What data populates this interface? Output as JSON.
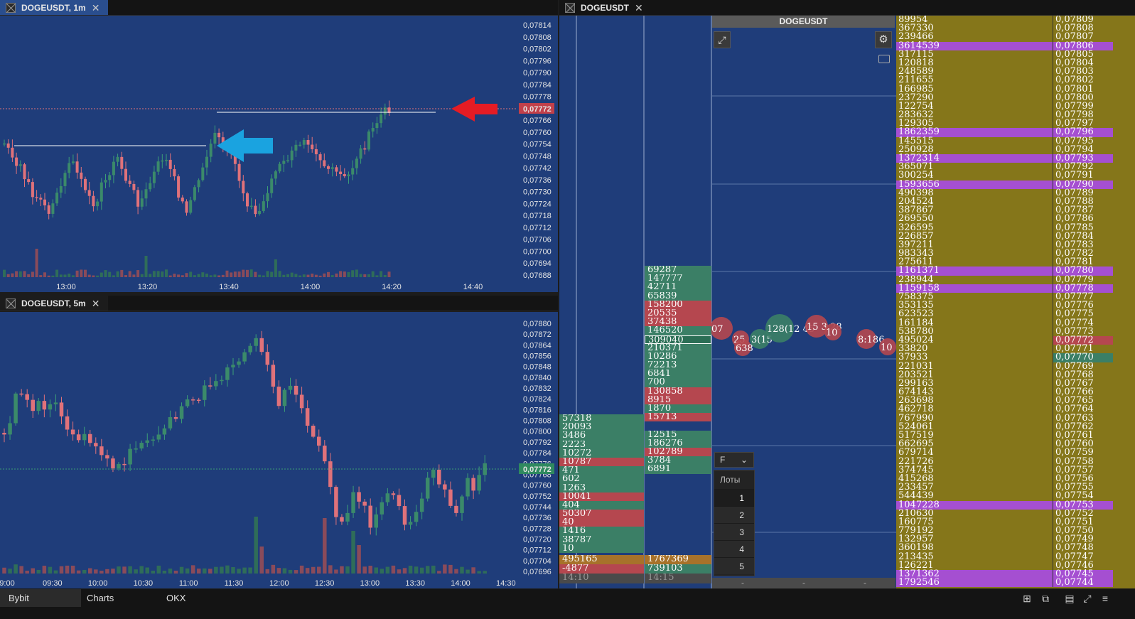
{
  "top_left_tab": {
    "title": "DOGEUSDT, 1m",
    "close": "✕"
  },
  "bottom_left_tab": {
    "title": "DOGEUSDT, 5m",
    "close": "✕"
  },
  "right_tab": {
    "title": "DOGEUSDT",
    "close": "✕"
  },
  "cluster_header": {
    "title": "DOGEUSDT"
  },
  "chart1": {
    "price_labels": [
      "0,07814",
      "0,07808",
      "0,07802",
      "0,07796",
      "0,07790",
      "0,07784",
      "0,07778",
      "0,07772",
      "0,07766",
      "0,07760",
      "0,07754",
      "0,07748",
      "0,07742",
      "0,07736",
      "0,07730",
      "0,07724",
      "0,07718",
      "0,07712",
      "0,07706",
      "0,07700",
      "0,07694",
      "0,07688"
    ],
    "current_price": "0,07772",
    "time_labels": [
      "13:00",
      "13:20",
      "13:40",
      "14:00",
      "14:20",
      "14:40"
    ],
    "colors": {
      "up": "#3b7f66",
      "down": "#e0727a",
      "bg": "#1f3d7a",
      "red_arrow": "#e51c24",
      "blue_arrow": "#1aa3e0"
    }
  },
  "chart2": {
    "price_labels": [
      "0,07880",
      "0,07872",
      "0,07864",
      "0,07856",
      "0,07848",
      "0,07840",
      "0,07832",
      "0,07824",
      "0,07816",
      "0,07808",
      "0,07800",
      "0,07792",
      "0,07784",
      "0,07776",
      "0,07768",
      "0,07760",
      "0,07752",
      "0,07744",
      "0,07736",
      "0,07728",
      "0,07720",
      "0,07712",
      "0,07704",
      "0,07696"
    ],
    "current_price": "0,07772",
    "time_labels": [
      "9:00",
      "09:30",
      "10:00",
      "10:30",
      "11:00",
      "11:30",
      "12:00",
      "12:30",
      "13:00",
      "13:30",
      "14:00",
      "14:30"
    ]
  },
  "cluster_col1": {
    "rows": [
      {
        "v": "57318",
        "c": "g"
      },
      {
        "v": "20093",
        "c": "g"
      },
      {
        "v": "3486",
        "c": "g"
      },
      {
        "v": "2223",
        "c": "g"
      },
      {
        "v": "10272",
        "c": "g"
      },
      {
        "v": "10787",
        "c": "r"
      },
      {
        "v": "471",
        "c": "g"
      },
      {
        "v": "602",
        "c": "g"
      },
      {
        "v": "1263",
        "c": "g"
      },
      {
        "v": "10041",
        "c": "r"
      },
      {
        "v": "404",
        "c": "g"
      },
      {
        "v": "50307",
        "c": "r"
      },
      {
        "v": "40",
        "c": "r"
      },
      {
        "v": "1416",
        "c": "g"
      },
      {
        "v": "38787",
        "c": "g"
      },
      {
        "v": "10",
        "c": "g"
      }
    ],
    "total": "495165",
    "delta": "-4877",
    "time": "14:10"
  },
  "cluster_col2": {
    "rows": [
      {
        "v": "69287",
        "c": "g"
      },
      {
        "v": "147777",
        "c": "g"
      },
      {
        "v": "42711",
        "c": "g"
      },
      {
        "v": "65839",
        "c": "g"
      },
      {
        "v": "158200",
        "c": "r"
      },
      {
        "v": "20535",
        "c": "r"
      },
      {
        "v": "37438",
        "c": "r"
      },
      {
        "v": "146520",
        "c": "g"
      },
      {
        "v": "309040",
        "c": "sel"
      },
      {
        "v": "210371",
        "c": "g"
      },
      {
        "v": "10286",
        "c": "g"
      },
      {
        "v": "72213",
        "c": "g"
      },
      {
        "v": "6841",
        "c": "g"
      },
      {
        "v": "700",
        "c": "g"
      },
      {
        "v": "130858",
        "c": "r"
      },
      {
        "v": "8915",
        "c": "r"
      },
      {
        "v": "1870",
        "c": "g"
      },
      {
        "v": "15713",
        "c": "r"
      },
      {
        "v": "",
        "c": ""
      },
      {
        "v": "12515",
        "c": "g"
      },
      {
        "v": "186276",
        "c": "g"
      },
      {
        "v": "102789",
        "c": "r"
      },
      {
        "v": "3784",
        "c": "g"
      },
      {
        "v": "6891",
        "c": "g"
      }
    ],
    "total": "1767369",
    "delta": "739103",
    "time": "14:15"
  },
  "bubbles": [
    "07",
    "25",
    "638",
    "3(15",
    "128(12 45",
    "15 3 28",
    "10",
    "8:186",
    "10"
  ],
  "dom": {
    "rows": [
      {
        "v": "89954",
        "p": "0,07809",
        "t": ""
      },
      {
        "v": "367330",
        "p": "0,07808",
        "t": ""
      },
      {
        "v": "239466",
        "p": "0,07807",
        "t": ""
      },
      {
        "v": "3614539",
        "p": "0,07806",
        "t": "hl"
      },
      {
        "v": "317115",
        "p": "0,07805",
        "t": ""
      },
      {
        "v": "120818",
        "p": "0,07804",
        "t": ""
      },
      {
        "v": "248589",
        "p": "0,07803",
        "t": ""
      },
      {
        "v": "211655",
        "p": "0,07802",
        "t": ""
      },
      {
        "v": "166985",
        "p": "0,07801",
        "t": ""
      },
      {
        "v": "237290",
        "p": "0,07800",
        "t": ""
      },
      {
        "v": "122754",
        "p": "0,07799",
        "t": ""
      },
      {
        "v": "283632",
        "p": "0,07798",
        "t": ""
      },
      {
        "v": "129305",
        "p": "0,07797",
        "t": ""
      },
      {
        "v": "1862359",
        "p": "0,07796",
        "t": "hl"
      },
      {
        "v": "145515",
        "p": "0,07795",
        "t": ""
      },
      {
        "v": "250928",
        "p": "0,07794",
        "t": ""
      },
      {
        "v": "1372314",
        "p": "0,07793",
        "t": "hl"
      },
      {
        "v": "365071",
        "p": "0,07792",
        "t": ""
      },
      {
        "v": "300254",
        "p": "0,07791",
        "t": ""
      },
      {
        "v": "1593656",
        "p": "0,07790",
        "t": "hl"
      },
      {
        "v": "490398",
        "p": "0,07789",
        "t": ""
      },
      {
        "v": "204524",
        "p": "0,07788",
        "t": ""
      },
      {
        "v": "387867",
        "p": "0,07787",
        "t": ""
      },
      {
        "v": "269550",
        "p": "0,07786",
        "t": ""
      },
      {
        "v": "326595",
        "p": "0,07785",
        "t": ""
      },
      {
        "v": "226857",
        "p": "0,07784",
        "t": ""
      },
      {
        "v": "397211",
        "p": "0,07783",
        "t": ""
      },
      {
        "v": "983343",
        "p": "0,07782",
        "t": ""
      },
      {
        "v": "275611",
        "p": "0,07781",
        "t": ""
      },
      {
        "v": "1161371",
        "p": "0,07780",
        "t": "hl"
      },
      {
        "v": "238944",
        "p": "0,07779",
        "t": ""
      },
      {
        "v": "1159158",
        "p": "0,07778",
        "t": "hl"
      },
      {
        "v": "758375",
        "p": "0,07777",
        "t": ""
      },
      {
        "v": "353135",
        "p": "0,07776",
        "t": ""
      },
      {
        "v": "623523",
        "p": "0,07775",
        "t": ""
      },
      {
        "v": "161184",
        "p": "0,07774",
        "t": ""
      },
      {
        "v": "538780",
        "p": "0,07773",
        "t": ""
      },
      {
        "v": "495024",
        "p": "0,07772",
        "t": "ask"
      },
      {
        "v": "33820",
        "p": "0,07771",
        "t": ""
      },
      {
        "v": "37933",
        "p": "0,07770",
        "t": "bid"
      },
      {
        "v": "221031",
        "p": "0,07769",
        "t": ""
      },
      {
        "v": "203521",
        "p": "0,07768",
        "t": ""
      },
      {
        "v": "299163",
        "p": "0,07767",
        "t": ""
      },
      {
        "v": "674143",
        "p": "0,07766",
        "t": ""
      },
      {
        "v": "263698",
        "p": "0,07765",
        "t": ""
      },
      {
        "v": "462718",
        "p": "0,07764",
        "t": ""
      },
      {
        "v": "767990",
        "p": "0,07763",
        "t": ""
      },
      {
        "v": "524061",
        "p": "0,07762",
        "t": ""
      },
      {
        "v": "517519",
        "p": "0,07761",
        "t": ""
      },
      {
        "v": "662695",
        "p": "0,07760",
        "t": ""
      },
      {
        "v": "679714",
        "p": "0,07759",
        "t": ""
      },
      {
        "v": "221726",
        "p": "0,07758",
        "t": ""
      },
      {
        "v": "374745",
        "p": "0,07757",
        "t": ""
      },
      {
        "v": "415268",
        "p": "0,07756",
        "t": ""
      },
      {
        "v": "233457",
        "p": "0,07755",
        "t": ""
      },
      {
        "v": "544439",
        "p": "0,07754",
        "t": ""
      },
      {
        "v": "1047228",
        "p": "0,07753",
        "t": "hl"
      },
      {
        "v": "210630",
        "p": "0,07752",
        "t": ""
      },
      {
        "v": "160775",
        "p": "0,07751",
        "t": ""
      },
      {
        "v": "779192",
        "p": "0,07750",
        "t": ""
      },
      {
        "v": "132957",
        "p": "0,07749",
        "t": ""
      },
      {
        "v": "360198",
        "p": "0,07748",
        "t": ""
      },
      {
        "v": "213435",
        "p": "0,07747",
        "t": ""
      },
      {
        "v": "126221",
        "p": "0,07746",
        "t": ""
      },
      {
        "v": "1371362",
        "p": "0,07745",
        "t": "hl"
      },
      {
        "v": "1792546",
        "p": "0,07744",
        "t": "hl"
      }
    ]
  },
  "filter_select": {
    "value": "F"
  },
  "lots": {
    "header": "Лоты",
    "items": [
      "1",
      "2",
      "3",
      "4",
      "5"
    ],
    "selected": "1"
  },
  "footer_dashes": [
    "-",
    "-",
    "-"
  ],
  "bottom_tabs": [
    "Bybit",
    "Charts",
    "OKX"
  ]
}
